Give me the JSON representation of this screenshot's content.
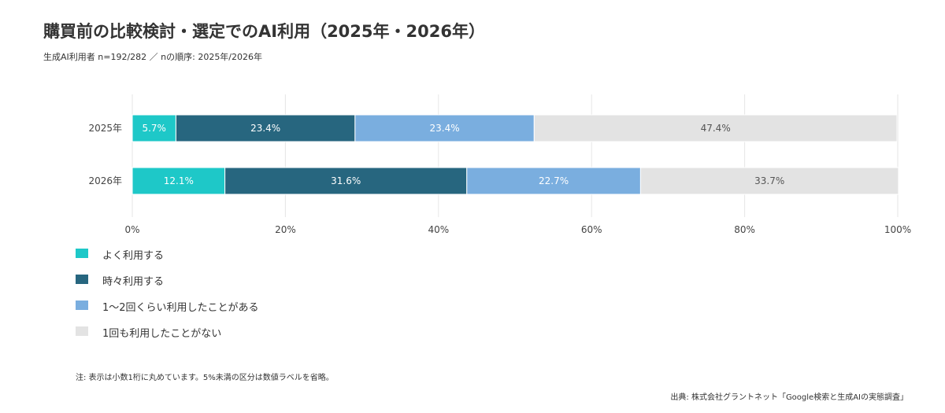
{
  "header": {
    "title": "購買前の比較検討・選定でのAI利用（2025年・2026年）",
    "subtitle": "生成AI利用者 n=192/282 ／ nの順序: 2025年/2026年"
  },
  "chart_data": {
    "type": "bar",
    "orientation": "horizontal",
    "stacked": true,
    "categories": [
      "2025年",
      "2026年"
    ],
    "series": [
      {
        "name": "よく利用する",
        "color": "#1ec8c8",
        "values": [
          5.7,
          12.1
        ],
        "labels": [
          "5.7%",
          "12.1%"
        ]
      },
      {
        "name": "時々利用する",
        "color": "#27667f",
        "values": [
          23.4,
          31.6
        ],
        "labels": [
          "23.4%",
          "31.6%"
        ]
      },
      {
        "name": "1〜2回くらい利用したことがある",
        "color": "#7aaedf",
        "values": [
          23.4,
          22.7
        ],
        "labels": [
          "23.4%",
          "22.7%"
        ]
      },
      {
        "name": "1回も利用したことがない",
        "color": "#e3e3e3",
        "values": [
          47.4,
          33.7
        ],
        "labels": [
          "47.4%",
          "33.7%"
        ]
      }
    ],
    "xlim": [
      0,
      100
    ],
    "xticks": [
      "0%",
      "20%",
      "40%",
      "60%",
      "80%",
      "100%"
    ],
    "grid": true,
    "legend_position": "bottom-left"
  },
  "footer": {
    "note": "注: 表示は小数1桁に丸めています。5%未満の区分は数値ラベルを省略。",
    "source": "出典: 株式会社グラントネット「Google検索と生成AIの実態調査」"
  }
}
